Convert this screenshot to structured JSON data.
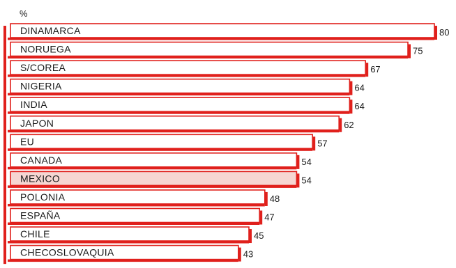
{
  "chart_data": {
    "type": "bar",
    "orientation": "horizontal",
    "unit_label": "%",
    "categories": [
      "DINAMARCA",
      "NORUEGA",
      "S/COREA",
      "NIGERIA",
      "INDIA",
      "JAPON",
      "EU",
      "CANADA",
      "MEXICO",
      "POLONIA",
      "ESPAÑA",
      "CHILE",
      "CHECOSLOVAQUIA"
    ],
    "values": [
      80,
      75,
      67,
      64,
      64,
      62,
      57,
      54,
      54,
      48,
      47,
      45,
      43
    ],
    "highlight_category": "MEXICO",
    "grid": false,
    "legend": "none",
    "colors": {
      "accent": "#e0201c",
      "bar_fill": "#ffffff",
      "highlight_fill": "#f6d6d2",
      "text": "#1a1a1a"
    }
  }
}
